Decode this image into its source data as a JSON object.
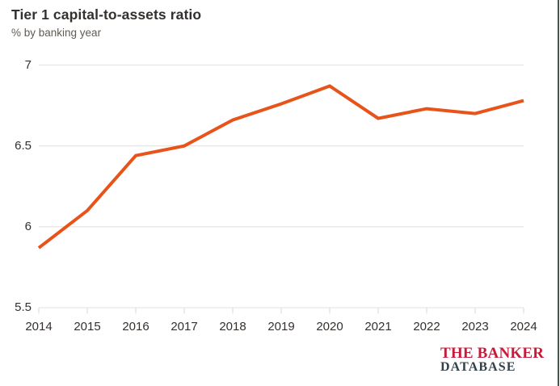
{
  "header": {
    "title": "Tier 1 capital-to-assets ratio",
    "subtitle": "% by banking year"
  },
  "chart_data": {
    "type": "line",
    "title": "Tier 1 capital-to-assets ratio",
    "subtitle": "% by banking year",
    "xlabel": "",
    "ylabel": "% by banking year",
    "x": [
      "2014",
      "2015",
      "2016",
      "2017",
      "2018",
      "2019",
      "2020",
      "2021",
      "2022",
      "2023",
      "2024"
    ],
    "series": [
      {
        "name": "Tier 1 capital-to-assets ratio (%)",
        "values": [
          5.87,
          6.1,
          6.44,
          6.5,
          6.66,
          6.76,
          6.87,
          6.67,
          6.73,
          6.7,
          6.78
        ]
      }
    ],
    "ylim": [
      5.5,
      7
    ],
    "yticks": [
      5.5,
      6,
      6.5,
      7
    ],
    "ytick_labels": [
      "5.5",
      "6",
      "6.5",
      "7"
    ],
    "grid": true,
    "legend": false
  },
  "branding": {
    "logo_line1": "THE BANKER",
    "logo_line2": "DATABASE"
  },
  "colors": {
    "background": "#ffffff",
    "line": "#e8531a",
    "grid": "#e7e7e5",
    "tick": "#e0e0de",
    "title_text": "#33302e",
    "subtitle_text": "#605a54",
    "axis_text": "#33302e",
    "logo_red": "#c51a3a",
    "logo_dark": "#33414b",
    "edge_line": "#3e5c4b"
  }
}
